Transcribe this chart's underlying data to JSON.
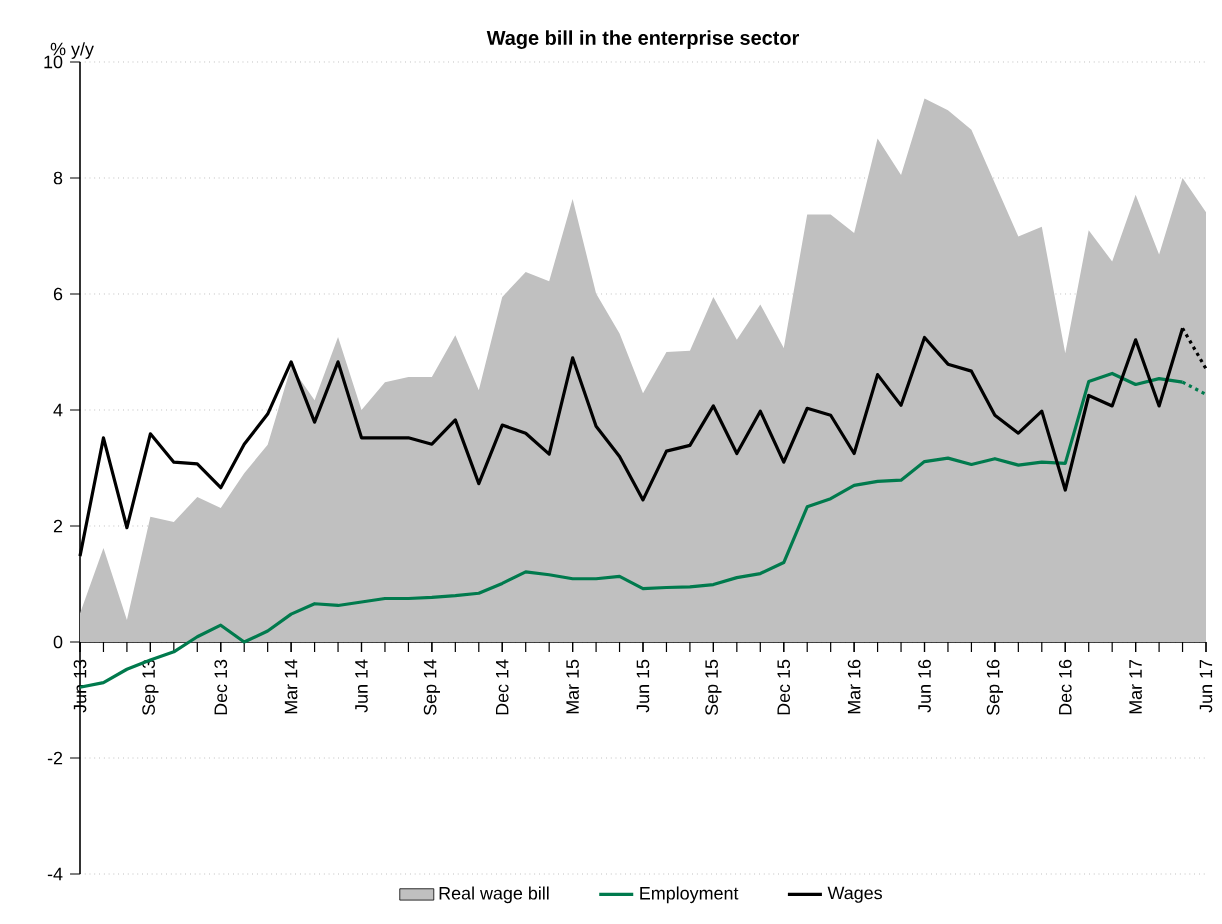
{
  "chart_data": {
    "type": "line",
    "title": "Wage bill in the enterprise sector",
    "ylabel": "% y/y",
    "categories": [
      "Jun 13",
      null,
      null,
      "Sep 13",
      null,
      null,
      "Dec 13",
      null,
      null,
      "Mar 14",
      null,
      null,
      "Jun 14",
      null,
      null,
      "Sep 14",
      null,
      null,
      "Dec 14",
      null,
      null,
      "Mar 15",
      null,
      null,
      "Jun 15",
      null,
      null,
      "Sep 15",
      null,
      null,
      "Dec 15",
      null,
      null,
      "Mar 16",
      null,
      null,
      "Jun 16",
      null,
      null,
      "Sep 16",
      null,
      null,
      "Dec 16",
      null,
      null,
      "Mar 17",
      null,
      null,
      "Jun 17"
    ],
    "ylim": [
      -4,
      10
    ],
    "yticks": [
      -4,
      -2,
      0,
      2,
      4,
      6,
      8,
      10
    ],
    "grid": "y",
    "legend": "bottom",
    "series": [
      {
        "name": "Real wage bill",
        "type": "area",
        "color": "#c0c0c0",
        "values": [
          0.49,
          1.62,
          0.38,
          2.16,
          2.07,
          2.5,
          2.31,
          2.91,
          3.4,
          4.75,
          4.17,
          5.26,
          4.0,
          4.48,
          4.57,
          4.57,
          5.29,
          4.34,
          5.95,
          6.38,
          6.22,
          7.64,
          6.01,
          5.32,
          4.29,
          5.0,
          5.02,
          5.95,
          5.21,
          5.82,
          5.07,
          7.37,
          7.37,
          7.05,
          8.68,
          8.05,
          9.37,
          9.17,
          8.83,
          7.91,
          6.99,
          7.16,
          4.98,
          7.1,
          6.56,
          7.71,
          6.68,
          8.0,
          7.41
        ]
      },
      {
        "name": "Employment",
        "line_style": "solid",
        "color": "#007a4d",
        "values": [
          -0.78,
          -0.7,
          -0.47,
          -0.31,
          -0.17,
          0.09,
          0.29,
          0.0,
          0.19,
          0.48,
          0.66,
          0.63,
          0.69,
          0.75,
          0.75,
          0.77,
          0.8,
          0.84,
          1.01,
          1.21,
          1.16,
          1.09,
          1.09,
          1.13,
          0.92,
          0.94,
          0.95,
          0.99,
          1.11,
          1.18,
          1.37,
          2.33,
          2.47,
          2.7,
          2.77,
          2.79,
          3.11,
          3.17,
          3.06,
          3.16,
          3.05,
          3.1,
          3.08,
          4.49,
          4.63,
          4.44,
          4.54,
          4.48,
          null
        ]
      },
      {
        "name": "Wages",
        "line_style": "solid",
        "color": "#000000",
        "values": [
          1.48,
          3.52,
          1.97,
          3.59,
          3.1,
          3.07,
          2.66,
          3.41,
          3.93,
          4.83,
          3.79,
          4.83,
          3.52,
          3.52,
          3.52,
          3.41,
          3.83,
          2.73,
          3.74,
          3.6,
          3.24,
          4.9,
          3.72,
          3.2,
          2.45,
          3.29,
          3.39,
          4.07,
          3.25,
          3.98,
          3.1,
          4.03,
          3.91,
          3.25,
          4.61,
          4.08,
          5.25,
          4.79,
          4.67,
          3.91,
          3.6,
          3.98,
          2.62,
          4.25,
          4.07,
          5.21,
          4.07,
          5.41,
          null
        ]
      },
      {
        "line_style": "dotted",
        "color": "#007a4d",
        "values": [
          null,
          null,
          null,
          null,
          null,
          null,
          null,
          null,
          null,
          null,
          null,
          null,
          null,
          null,
          null,
          null,
          null,
          null,
          null,
          null,
          null,
          null,
          null,
          null,
          null,
          null,
          null,
          null,
          null,
          null,
          null,
          null,
          null,
          null,
          null,
          null,
          null,
          null,
          null,
          null,
          null,
          null,
          null,
          null,
          null,
          null,
          null,
          4.48,
          4.27
        ]
      },
      {
        "line_style": "dotted",
        "color": "#000000",
        "values": [
          null,
          null,
          null,
          null,
          null,
          null,
          null,
          null,
          null,
          null,
          null,
          null,
          null,
          null,
          null,
          null,
          null,
          null,
          null,
          null,
          null,
          null,
          null,
          null,
          null,
          null,
          null,
          null,
          null,
          null,
          null,
          null,
          null,
          null,
          null,
          null,
          null,
          null,
          null,
          null,
          null,
          null,
          null,
          null,
          null,
          null,
          null,
          5.41,
          4.71
        ]
      }
    ]
  }
}
